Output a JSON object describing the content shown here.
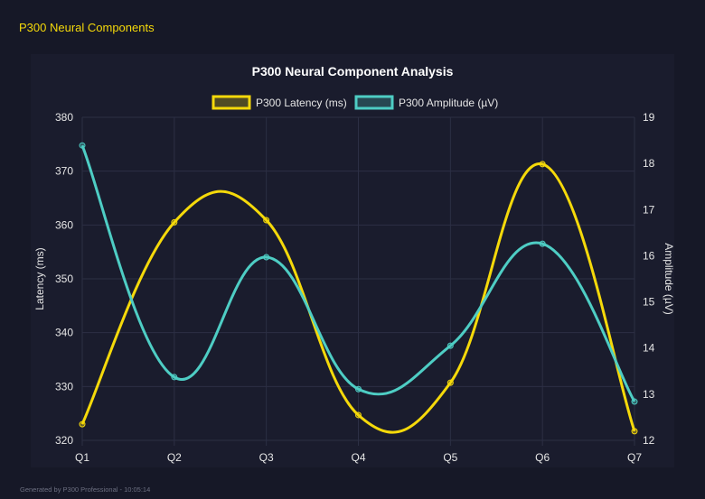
{
  "header": {
    "title": "P300 Neural Components"
  },
  "footer": {
    "text": "Generated by P300 Professional - 10:05:14"
  },
  "chart_data": {
    "type": "line",
    "title": "P300 Neural Component Analysis",
    "categories": [
      "Q1",
      "Q2",
      "Q3",
      "Q4",
      "Q5",
      "Q6",
      "Q7"
    ],
    "series": [
      {
        "name": "P300 Latency (ms)",
        "axis": "left",
        "color": "#f5d90a",
        "values": [
          323.0,
          360.5,
          360.9,
          324.7,
          330.7,
          371.3,
          321.7
        ]
      },
      {
        "name": "P300 Amplitude (µV)",
        "axis": "right",
        "color": "#4ecdc4",
        "values": [
          18.39,
          13.37,
          15.97,
          13.11,
          14.05,
          16.26,
          12.84
        ]
      }
    ],
    "ylabel_left": "Latency (ms)",
    "ylabel_right": "Amplitude (µV)",
    "ylim_left": [
      320,
      380
    ],
    "yticks_left": [
      "320",
      "330",
      "340",
      "350",
      "360",
      "370",
      "380"
    ],
    "ylim_right": [
      12,
      19
    ],
    "yticks_right": [
      "12",
      "13",
      "14",
      "15",
      "16",
      "17",
      "18",
      "19"
    ],
    "grid": true,
    "legend": "top",
    "smooth": true
  }
}
